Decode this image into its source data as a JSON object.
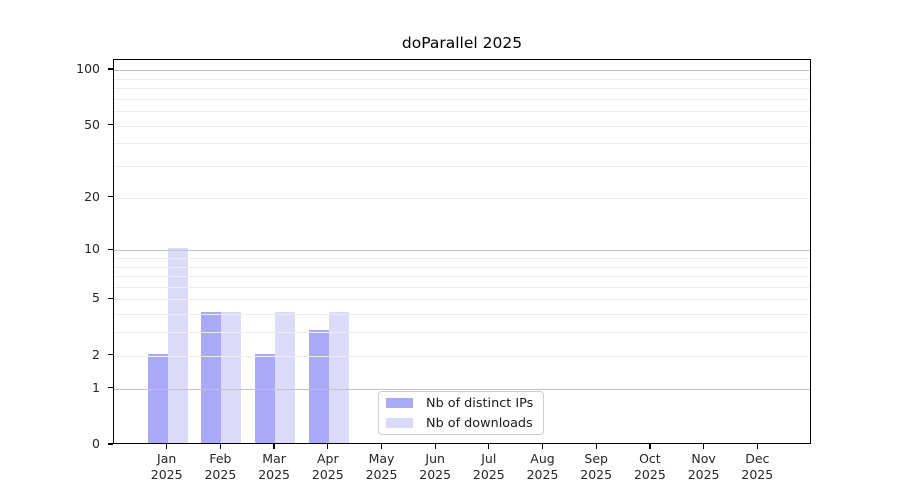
{
  "title": "doParallel 2025",
  "legend": {
    "items": [
      "Nb of distinct IPs",
      "Nb of downloads"
    ]
  },
  "chart_data": {
    "type": "bar",
    "title": "doParallel 2025",
    "categories": [
      "Jan",
      "Feb",
      "Mar",
      "Apr",
      "May",
      "Jun",
      "Jul",
      "Aug",
      "Sep",
      "Oct",
      "Nov",
      "Dec"
    ],
    "category_year": "2025",
    "series": [
      {
        "name": "Nb of distinct IPs",
        "color": "#a9a9f8",
        "values": [
          2,
          4,
          2,
          3,
          0,
          0,
          0,
          0,
          0,
          0,
          0,
          0
        ]
      },
      {
        "name": "Nb of downloads",
        "color": "#dbdbf9",
        "values": [
          10,
          4,
          4,
          4,
          0,
          0,
          0,
          0,
          0,
          0,
          0,
          0
        ]
      }
    ],
    "y_axis": {
      "scale": "log1p",
      "tick_values": [
        0,
        1,
        2,
        5,
        10,
        20,
        50,
        100
      ],
      "tick_labels": [
        "0",
        "1",
        "2",
        "5",
        "10",
        "20",
        "50",
        "100"
      ],
      "major_gridlines": [
        1,
        10,
        100
      ],
      "minor_gridlines": [
        2,
        3,
        4,
        5,
        6,
        7,
        8,
        9,
        20,
        30,
        40,
        50,
        60,
        70,
        80,
        90
      ],
      "range": [
        0,
        100
      ]
    },
    "x_axis": {
      "tick_per_category": true
    },
    "grid": true,
    "legend_position": "inside-bottom-center",
    "colors": {
      "spine": "#000000",
      "major_grid": "#c3c3c3",
      "minor_grid": "#ededed",
      "tick_text": "#262626",
      "legend_border": "#cccccc"
    }
  }
}
